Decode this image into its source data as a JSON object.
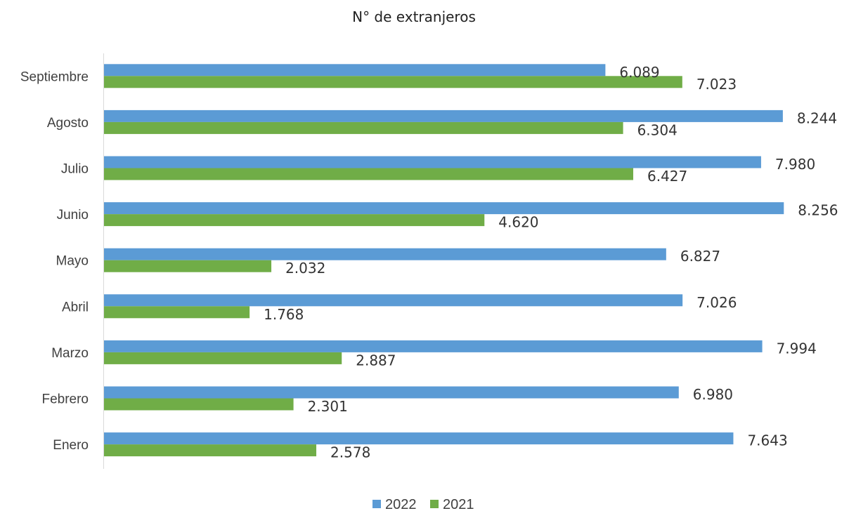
{
  "chart_data": {
    "type": "bar",
    "orientation": "horizontal",
    "title": "N° de extranjeros",
    "categories": [
      "Enero",
      "Febrero",
      "Marzo",
      "Abril",
      "Mayo",
      "Junio",
      "Julio",
      "Agosto",
      "Septiembre"
    ],
    "series": [
      {
        "name": "2022",
        "color": "#5b9bd5",
        "values": [
          7643,
          6980,
          7994,
          7026,
          6827,
          8256,
          7980,
          8244,
          6089
        ],
        "labels": [
          "7.643",
          "6.980",
          "7.994",
          "7.026",
          "6.827",
          "8.256",
          "7.980",
          "8.244",
          "6.089"
        ]
      },
      {
        "name": "2021",
        "color": "#70ad47",
        "values": [
          2578,
          2301,
          2887,
          1768,
          2032,
          4620,
          6427,
          6304,
          7023
        ],
        "labels": [
          "2.578",
          "2.301",
          "2.887",
          "1.768",
          "2.032",
          "4.620",
          "6.427",
          "6.304",
          "7.023"
        ]
      }
    ],
    "xlim": [
      0,
      8450
    ],
    "grid": false,
    "legend_position": "bottom"
  }
}
